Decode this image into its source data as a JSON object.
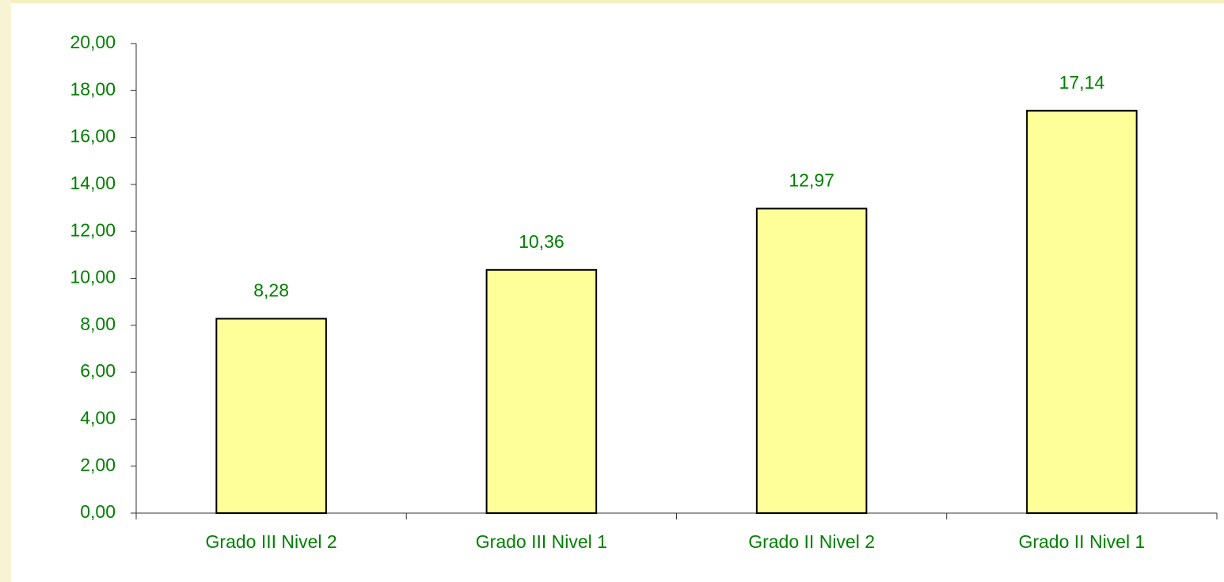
{
  "chart_data": {
    "type": "bar",
    "categories": [
      "Grado III Nivel 2",
      "Grado III Nivel 1",
      "Grado II Nivel 2",
      "Grado II Nivel 1"
    ],
    "values": [
      8.28,
      10.36,
      12.97,
      17.14
    ],
    "value_labels": [
      "8,28",
      "10,36",
      "12,97",
      "17,14"
    ],
    "color": "#ffff99",
    "ylim": [
      0,
      20
    ],
    "yticks": [
      {
        "value": 0,
        "label": "0,00"
      },
      {
        "value": 2,
        "label": "2,00"
      },
      {
        "value": 4,
        "label": "4,00"
      },
      {
        "value": 6,
        "label": "6,00"
      },
      {
        "value": 8,
        "label": "8,00"
      },
      {
        "value": 10,
        "label": "10,00"
      },
      {
        "value": 12,
        "label": "12,00"
      },
      {
        "value": 14,
        "label": "14,00"
      },
      {
        "value": 16,
        "label": "16,00"
      },
      {
        "value": 18,
        "label": "18,00"
      },
      {
        "value": 20,
        "label": "20,00"
      }
    ],
    "grid": false
  }
}
